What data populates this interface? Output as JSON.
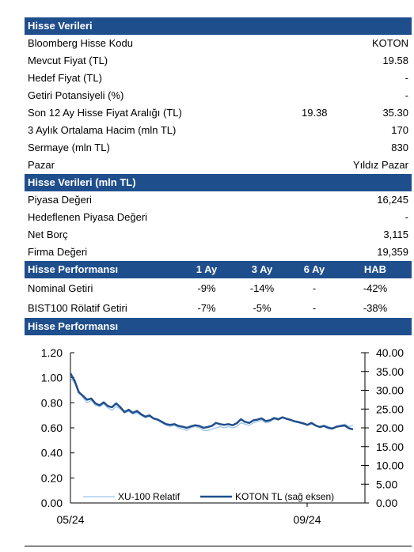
{
  "stock_data_header": "Hisse Verileri",
  "stock_rows": [
    {
      "label": "Bloomberg Hisse Kodu",
      "value": "KOTON"
    },
    {
      "label": "Mevcut Fiyat (TL)",
      "value": "19.58"
    },
    {
      "label": "Hedef Fiyat (TL)",
      "value": "-"
    },
    {
      "label": "Getiri Potansiyeli (%)",
      "value": "-"
    },
    {
      "label": "Son 12 Ay Hisse Fiyat Aralığı (TL)",
      "low": "19.38",
      "value": "35.30"
    },
    {
      "label": "3 Aylık Ortalama Hacim (mln TL)",
      "value": "170"
    },
    {
      "label": "Sermaye (mln TL)",
      "value": "830"
    },
    {
      "label": "Pazar",
      "value": "Yıldız Pazar"
    }
  ],
  "valuation_header": "Hisse Verileri (mln TL)",
  "valuation_rows": [
    {
      "label": "Piyasa Değeri",
      "value": "16,245"
    },
    {
      "label": "Hedeflenen Piyasa Değeri",
      "value": "-"
    },
    {
      "label": "Net Borç",
      "value": "3,115"
    },
    {
      "label": "Firma Değeri",
      "value": "19,359"
    }
  ],
  "performance_header": {
    "title": "Hisse Performansı",
    "cols": [
      "1 Ay",
      "3 Ay",
      "6 Ay",
      "HAB"
    ]
  },
  "performance_rows": [
    {
      "label": "Nominal Getiri",
      "vals": [
        "-9%",
        "-14%",
        "-",
        "-42%"
      ]
    },
    {
      "label": "BIST100 Rölatif Getiri",
      "vals": [
        "-7%",
        "-5%",
        "-",
        "-38%"
      ]
    }
  ],
  "chart_header": "Hisse Performansı",
  "colors": {
    "header_bg": "#1f4e8c",
    "koton_line": "#1f4e8c",
    "xu100_line": "#9dc3e6"
  },
  "chart_data": {
    "type": "line",
    "x_labels": [
      "05/24",
      "09/24"
    ],
    "yleft_ticks": [
      "1.20",
      "1.00",
      "0.80",
      "0.60",
      "0.40",
      "0.20",
      "0.00"
    ],
    "yright_ticks": [
      "40.00",
      "35.00",
      "30.00",
      "25.00",
      "20.00",
      "15.00",
      "10.00",
      "5.00",
      "0.00"
    ],
    "ylim_left": [
      0,
      1.2
    ],
    "ylim_right": [
      0,
      40
    ],
    "series": [
      {
        "name": "XU-100 Relatif",
        "axis": "left",
        "values": [
          1.0,
          0.96,
          0.9,
          0.84,
          0.8,
          0.82,
          0.78,
          0.77,
          0.79,
          0.76,
          0.74,
          0.77,
          0.75,
          0.72,
          0.73,
          0.71,
          0.72,
          0.7,
          0.68,
          0.69,
          0.67,
          0.66,
          0.64,
          0.62,
          0.61,
          0.62,
          0.6,
          0.59,
          0.58,
          0.6,
          0.61,
          0.6,
          0.58,
          0.58,
          0.59,
          0.6,
          0.61,
          0.6,
          0.61,
          0.6,
          0.61,
          0.64,
          0.63,
          0.62,
          0.64,
          0.65,
          0.66,
          0.64,
          0.65,
          0.67,
          0.66,
          0.68,
          0.67,
          0.66,
          0.65,
          0.64,
          0.63,
          0.62,
          0.63,
          0.62,
          0.61,
          0.62,
          0.61,
          0.6,
          0.61,
          0.62,
          0.63,
          0.61,
          0.62
        ]
      },
      {
        "name": "KOTON TL (sağ eksen)",
        "axis": "right",
        "values": [
          34.5,
          32.5,
          29.5,
          28.5,
          27.5,
          27.8,
          26.5,
          26.0,
          26.8,
          25.8,
          25.5,
          26.5,
          25.5,
          24.2,
          24.8,
          24.0,
          24.5,
          23.6,
          23.0,
          23.3,
          22.5,
          22.2,
          21.6,
          21.0,
          20.8,
          21.0,
          20.5,
          20.3,
          20.0,
          20.4,
          20.7,
          20.5,
          20.0,
          20.2,
          20.5,
          21.3,
          21.0,
          20.8,
          21.0,
          20.7,
          21.2,
          22.3,
          21.6,
          21.3,
          22.0,
          22.2,
          22.5,
          21.8,
          22.0,
          22.6,
          22.3,
          22.8,
          22.4,
          22.1,
          21.7,
          21.5,
          21.2,
          20.8,
          21.3,
          20.6,
          20.2,
          20.5,
          20.0,
          19.8,
          20.3,
          20.5,
          20.6,
          19.9,
          19.6
        ]
      }
    ]
  }
}
